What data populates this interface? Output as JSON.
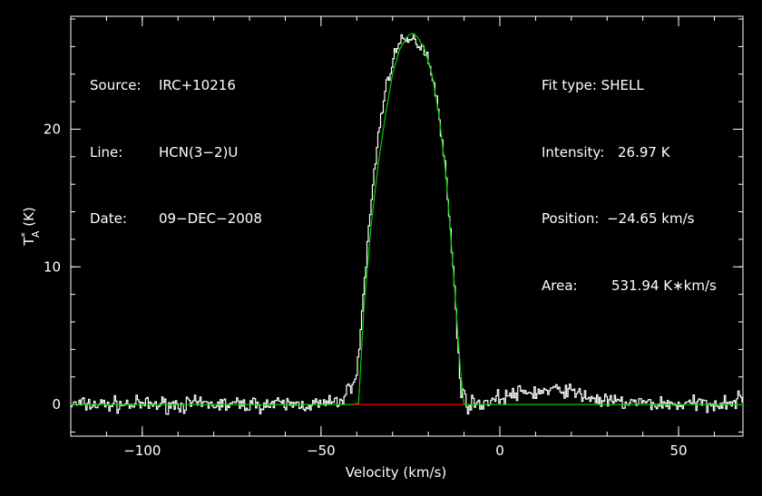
{
  "header_left": {
    "source_label": "Source:",
    "source_value": "IRC+10216",
    "line_label": "Line:",
    "line_value": "HCN(3−2)U",
    "date_label": "Date:",
    "date_value": "09−DEC−2008"
  },
  "header_right": {
    "fit_type": "Fit type: SHELL",
    "intensity_label": "Intensity:",
    "intensity_value": "26.97 K",
    "position_label": "Position:",
    "position_value": "−24.65 km/s",
    "area_label": "Area:",
    "area_value": "531.94 K∗km/s"
  },
  "chart_data": {
    "type": "line",
    "xlabel": "Velocity (km/s)",
    "ylabel": "T*A (K)",
    "xlim": [
      -120,
      68
    ],
    "ylim": [
      -2.3,
      28.2
    ],
    "xticks": [
      {
        "value": -100,
        "label": "−100"
      },
      {
        "value": -50,
        "label": "−50"
      },
      {
        "value": 0,
        "label": "0"
      },
      {
        "value": 50,
        "label": "50"
      }
    ],
    "yticks": [
      {
        "value": 0,
        "label": "0"
      },
      {
        "value": 10,
        "label": "10"
      },
      {
        "value": 20,
        "label": "20"
      }
    ],
    "series": [
      {
        "role": "observed",
        "color": "#ffffff",
        "x": [
          -120,
          -110,
          -100,
          -90,
          -80,
          -70,
          -60,
          -50,
          -45,
          -43,
          -41,
          -40,
          -38,
          -36,
          -34,
          -32,
          -30,
          -28,
          -26,
          -24.65,
          -23,
          -21,
          -19,
          -17,
          -15,
          -13,
          -11,
          -9,
          -5,
          0,
          5,
          10,
          15,
          18,
          20,
          25,
          30,
          40,
          50,
          60,
          68
        ],
        "y": [
          0,
          0,
          0,
          0,
          0,
          0,
          0,
          0,
          0.2,
          0.8,
          1.8,
          2.3,
          9,
          15,
          20,
          23,
          25.3,
          26.2,
          26.4,
          26.5,
          26.3,
          25.8,
          24,
          21,
          16,
          9,
          1,
          0,
          0.1,
          0.5,
          0.8,
          0.9,
          1,
          1.1,
          0.9,
          0.5,
          0.2,
          0.1,
          0,
          0.1,
          0.3
        ]
      },
      {
        "role": "fit",
        "color": "#00cc00",
        "x": [
          -120,
          -50,
          -41,
          -39.5,
          -38,
          -36,
          -34,
          -32,
          -30,
          -28,
          -26,
          -24.65,
          -23,
          -21,
          -19,
          -17,
          -15,
          -13,
          -11,
          -10,
          68
        ],
        "y": [
          0,
          0,
          0,
          0.1,
          7,
          13,
          17.5,
          21,
          24,
          25.8,
          26.7,
          26.97,
          26.7,
          25.8,
          24,
          21,
          16.5,
          9.8,
          2.5,
          0,
          0
        ]
      },
      {
        "role": "baseline",
        "color": "#ff0000",
        "x": [
          -41,
          -10
        ],
        "y": [
          0,
          0
        ]
      }
    ]
  }
}
